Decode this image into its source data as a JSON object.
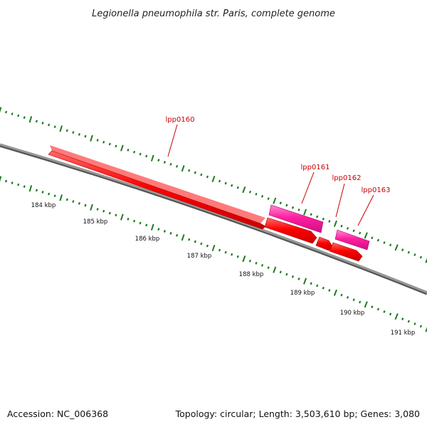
{
  "title": "Legionella pneumophila str. Paris, complete genome",
  "footer": {
    "accession": "Accession: NC_006368",
    "summary": "Topology: circular; Length: 3,503,610 bp; Genes: 3,080"
  },
  "scale": {
    "unit": "kbp",
    "labels": [
      "184 kbp",
      "185 kbp",
      "186 kbp",
      "187 kbp",
      "188 kbp",
      "189 kbp",
      "190 kbp",
      "191 kbp"
    ]
  },
  "colors": {
    "backbone": "#808080",
    "tick": "#1f7a1f",
    "gene_forward": "#ff0000",
    "gene_reverse": "#ff1fa0",
    "callout": "#cc0000"
  },
  "genes": [
    {
      "name": "lpp0160",
      "strand": "forward"
    },
    {
      "name": "lpp0161",
      "strand": "forward"
    },
    {
      "name": "lpp0162",
      "strand": "forward"
    },
    {
      "name": "lpp0163",
      "strand": "forward"
    },
    {
      "name": "",
      "strand": "reverse"
    },
    {
      "name": "",
      "strand": "reverse"
    }
  ]
}
